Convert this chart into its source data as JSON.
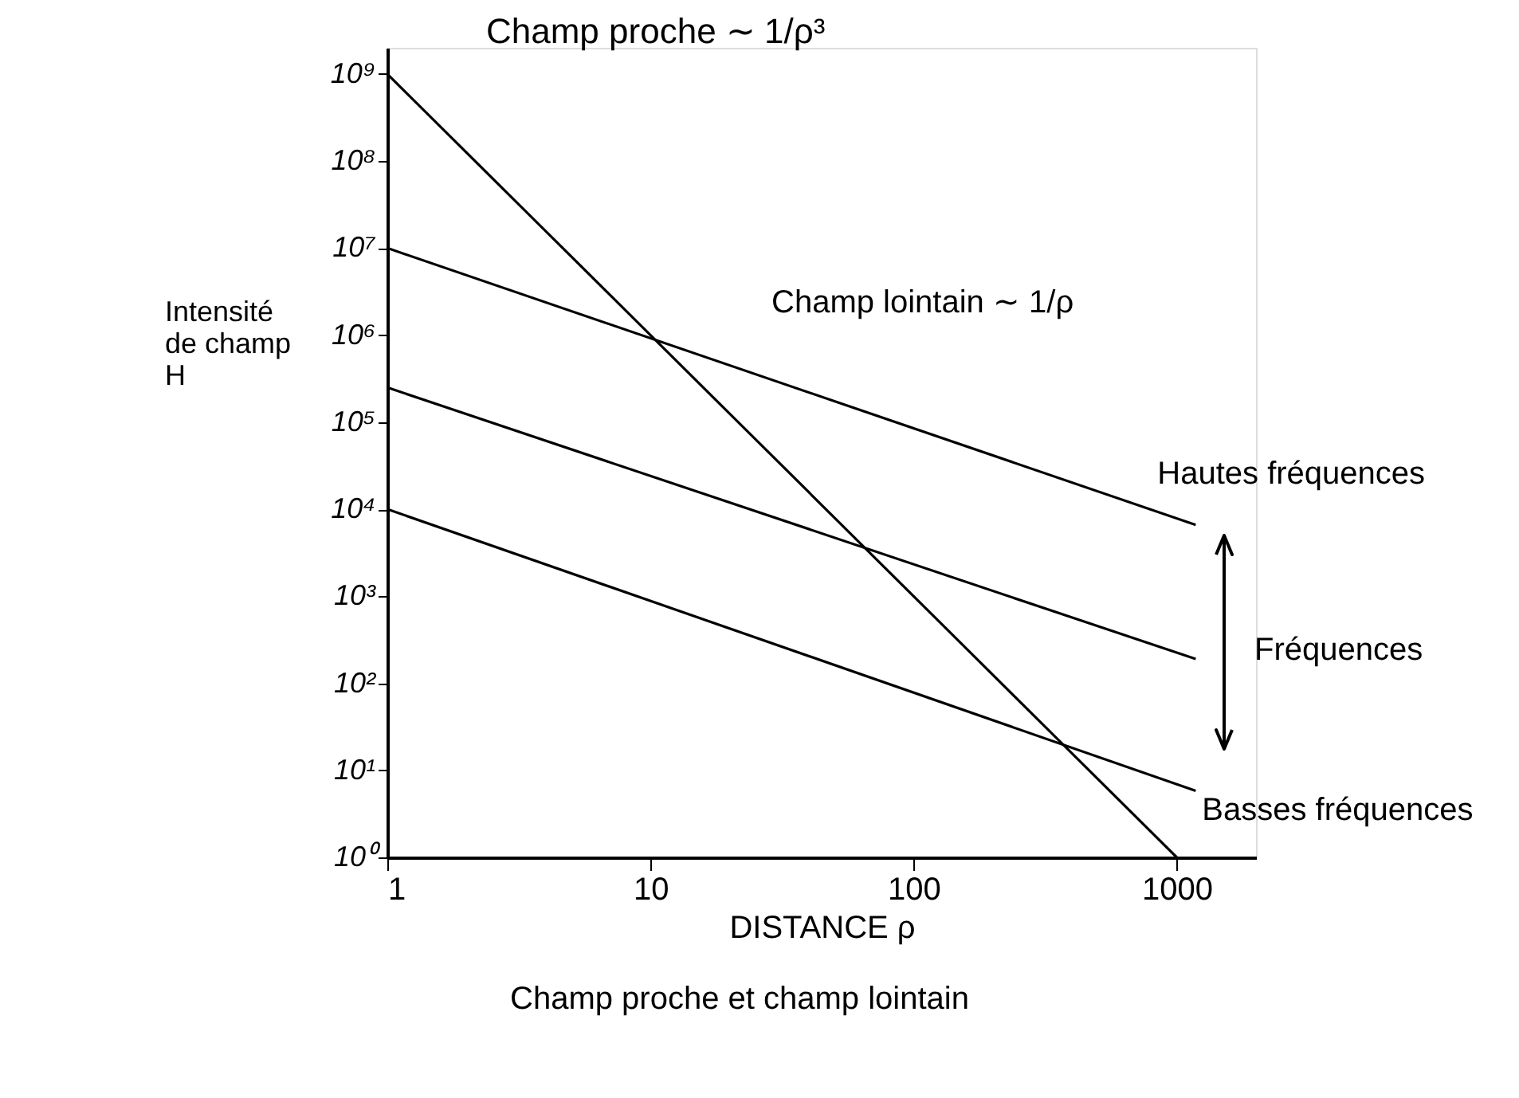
{
  "chart_data": {
    "type": "line",
    "title": "Champ proche et champ lointain",
    "xlabel": "DISTANCE ρ",
    "ylabel": "Intensité\nde champ\nH",
    "log": "xy",
    "grid": false,
    "legend": false,
    "marker": "none",
    "line_style": "solid",
    "xlim": [
      1,
      2000
    ],
    "xticks": [
      1,
      10,
      100,
      1000
    ],
    "ylim": [
      1,
      2000000000
    ],
    "yticks": [
      {
        "value": 1,
        "label": "10⁰"
      },
      {
        "value": 10,
        "label": "10¹"
      },
      {
        "value": 100,
        "label": "10²"
      },
      {
        "value": 1000,
        "label": "10³"
      },
      {
        "value": 10000,
        "label": "10⁴"
      },
      {
        "value": 100000,
        "label": "10⁵"
      },
      {
        "value": 1000000,
        "label": "10⁶"
      },
      {
        "value": 10000000,
        "label": "10⁷"
      },
      {
        "value": 100000000,
        "label": "10⁸"
      },
      {
        "value": 1000000000,
        "label": "10⁹"
      }
    ],
    "series": [
      {
        "color": "#000000",
        "x": [
          1,
          1000
        ],
        "values": [
          1000000000,
          1
        ]
      },
      {
        "name": "Hautes fréquences",
        "color": "#000000",
        "x": [
          1,
          1180
        ],
        "values": [
          10000000,
          6600
        ]
      },
      {
        "color": "#000000",
        "x": [
          1,
          1180
        ],
        "values": [
          250000,
          190
        ]
      },
      {
        "name": "Basses fréquences",
        "color": "#000000",
        "x": [
          1,
          1180
        ],
        "values": [
          10000,
          5.8
        ]
      }
    ],
    "annotations": [
      "Champ proche ∼ 1/ρ³",
      "Champ lointain ∼ 1/ρ",
      "Fréquences"
    ]
  }
}
